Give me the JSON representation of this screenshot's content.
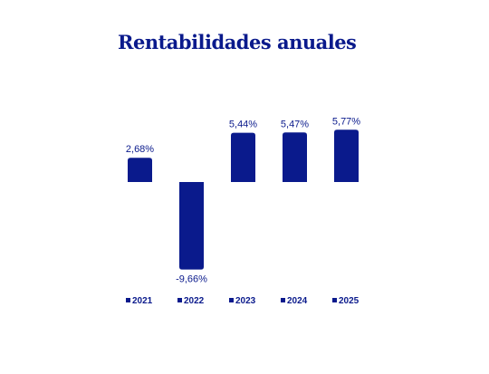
{
  "colors": {
    "bar": "#0a1a8c",
    "title": "#0a1a8c",
    "text": "#0a1a8c"
  },
  "chart_data": {
    "type": "bar",
    "title": "Rentabilidades anuales",
    "categories": [
      "2021",
      "2022",
      "2023",
      "2024",
      "2025"
    ],
    "values": [
      2.68,
      -9.66,
      5.44,
      5.47,
      5.77
    ],
    "value_labels": [
      "2,68%",
      "-9,66%",
      "5,44%",
      "5,47%",
      "5,77%"
    ],
    "legend": [
      "2021",
      "2022",
      "2023",
      "2024",
      "2025"
    ],
    "legend_position": "bottom",
    "ylim": [
      -9.66,
      5.77
    ],
    "grid": false,
    "xlabel": "",
    "ylabel": ""
  }
}
